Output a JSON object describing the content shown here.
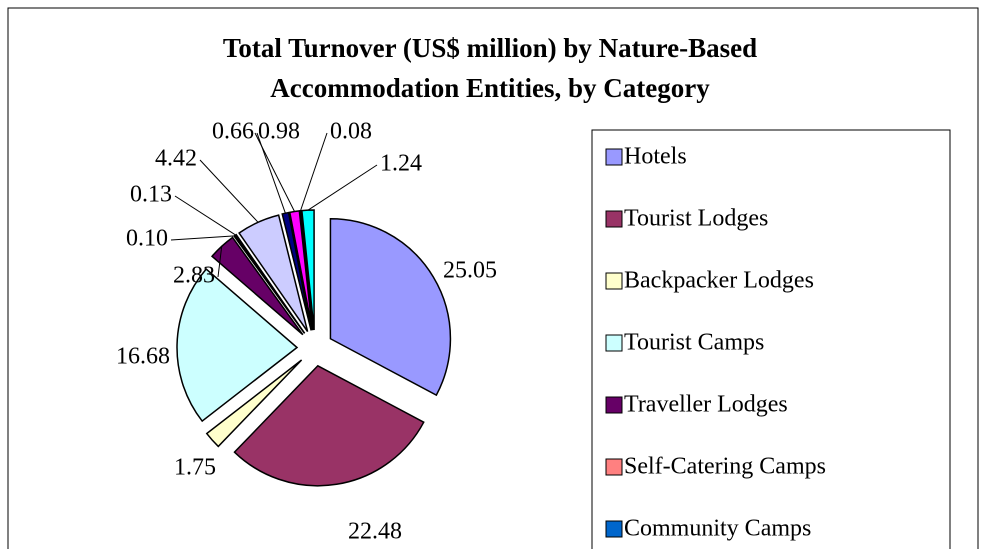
{
  "chart_data": {
    "type": "pie",
    "title": "Total Turnover (US$ million) by Nature-Based Accommodation Entities, by Category",
    "categories": [
      "Hotels",
      "Tourist Lodges",
      "Backpacker Lodges",
      "Tourist Camps",
      "Traveller Lodges",
      "Self-Catering Camps",
      "Community Camps",
      null,
      null,
      null,
      null,
      null
    ],
    "values": [
      25.05,
      22.48,
      1.75,
      16.68,
      2.83,
      0.1,
      0.13,
      4.42,
      0.66,
      0.98,
      0.08,
      1.24
    ],
    "value_labels": [
      "25.05",
      "22.48",
      "1.75",
      "16.68",
      "2.83",
      "0.10",
      "0.13",
      "4.42",
      "0.66",
      "0.98",
      "0.08",
      "1.24"
    ],
    "colors": [
      "#9999ff",
      "#993366",
      "#ffffcc",
      "#ccffff",
      "#660066",
      "#ff8080",
      "#0066cc",
      "#ccccff",
      "#000080",
      "#ff00ff",
      "#ffff00",
      "#00ffff"
    ],
    "legend": "right"
  }
}
